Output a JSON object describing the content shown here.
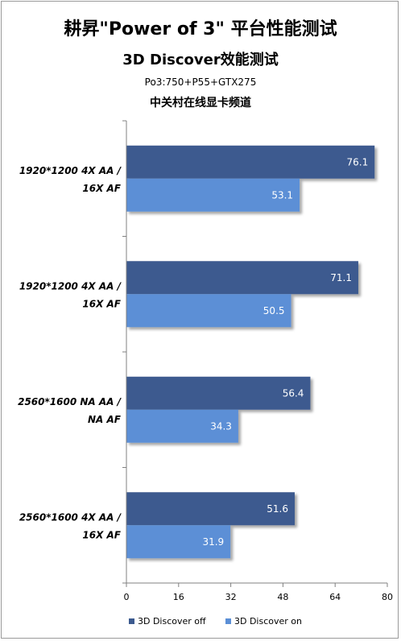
{
  "title": "耕昇\"Power of 3\" 平台性能测试",
  "subtitle": "3D Discover效能测试",
  "config": "Po3:750+P55+GTX275",
  "source": "中关村在线显卡频道",
  "colors": {
    "off": "#3c5a8f",
    "on": "#5b8fd6"
  },
  "chart_data": {
    "type": "bar",
    "orientation": "horizontal",
    "categories": [
      [
        "1920*1200 4X AA /",
        "16X AF"
      ],
      [
        "1920*1200 4X AA /",
        "16X AF"
      ],
      [
        "2560*1600 NA AA /",
        "NA AF"
      ],
      [
        "2560*1600 4X AA /",
        "16X AF"
      ]
    ],
    "series": [
      {
        "name": "3D Discover off",
        "values": [
          76.1,
          71.1,
          56.4,
          51.6
        ]
      },
      {
        "name": "3D Discover on",
        "values": [
          53.1,
          50.5,
          34.3,
          31.9
        ]
      }
    ],
    "xlim": [
      0,
      80
    ],
    "xticks": [
      0,
      16,
      32,
      48,
      64,
      80
    ],
    "grid": false,
    "legend": "bottom"
  }
}
